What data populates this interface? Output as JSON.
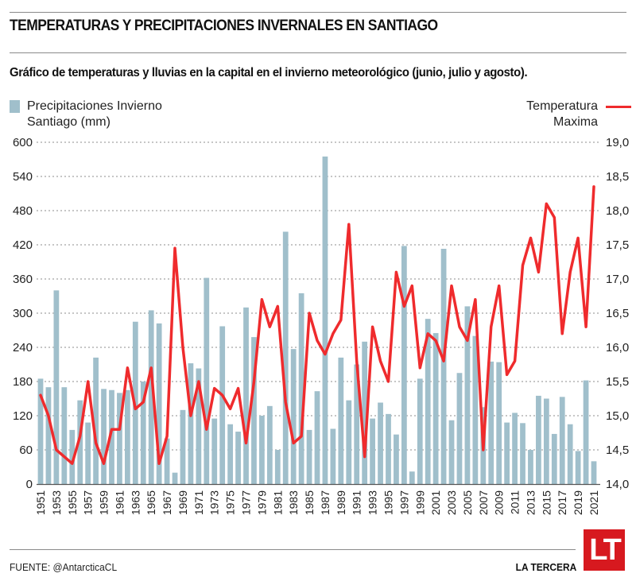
{
  "header": {
    "title": "TEMPERATURAS Y PRECIPITACIONES INVERNALES EN SANTIAGO",
    "subtitle": "Gráfico de temperaturas y lluvias en la capital en el invierno meteorológico (junio, julio y agosto)."
  },
  "legend": {
    "bars_line1": "Precipitaciones Invierno",
    "bars_line2": "Santiago (mm)",
    "line_line1": "Temperatura",
    "line_line2": "Maxima"
  },
  "colors": {
    "bars": "#a0bfcb",
    "line": "#ef2b2d",
    "logo": "#d7191f"
  },
  "footer": {
    "source": "FUENTE: @AntarcticaCL",
    "brand": "LA TERCERA",
    "logo_text": "LT"
  },
  "chart_data": {
    "type": "bar+line",
    "title": "TEMPERATURAS Y PRECIPITACIONES INVERNALES EN SANTIAGO",
    "xlabel": "",
    "ylabel_left": "Precipitaciones Invierno Santiago (mm)",
    "ylabel_right": "Temperatura Maxima",
    "ylim_left": [
      0,
      600
    ],
    "yticks_left": [
      "0",
      "60",
      "120",
      "180",
      "240",
      "300",
      "360",
      "420",
      "480",
      "540",
      "600"
    ],
    "ylim_right": [
      14.0,
      19.0
    ],
    "yticks_right": [
      "14,0",
      "14,5",
      "15,0",
      "15,5",
      "16,0",
      "16,5",
      "17,0",
      "17,5",
      "18,0",
      "18,5",
      "19,0"
    ],
    "grid": true,
    "legend_position": "top",
    "x": [
      1951,
      1952,
      1953,
      1954,
      1955,
      1956,
      1957,
      1958,
      1959,
      1960,
      1961,
      1962,
      1963,
      1964,
      1965,
      1966,
      1967,
      1968,
      1969,
      1970,
      1971,
      1972,
      1973,
      1974,
      1975,
      1976,
      1977,
      1978,
      1979,
      1980,
      1981,
      1982,
      1983,
      1984,
      1985,
      1986,
      1987,
      1988,
      1989,
      1990,
      1991,
      1992,
      1993,
      1994,
      1995,
      1996,
      1997,
      1998,
      1999,
      2000,
      2001,
      2002,
      2003,
      2004,
      2005,
      2006,
      2007,
      2008,
      2009,
      2010,
      2011,
      2012,
      2013,
      2014,
      2015,
      2016,
      2017,
      2018,
      2019,
      2020,
      2021
    ],
    "xtick_labels": [
      "1951",
      "1953",
      "1955",
      "1957",
      "1959",
      "1961",
      "1963",
      "1965",
      "1967",
      "1969",
      "1971",
      "1973",
      "1975",
      "1977",
      "1979",
      "1981",
      "1983",
      "1985",
      "1987",
      "1989",
      "1991",
      "1993",
      "1995",
      "1997",
      "1999",
      "2001",
      "2003",
      "2005",
      "2007",
      "2009",
      "2011",
      "2013",
      "2015",
      "2017",
      "2019",
      "2021"
    ],
    "series": [
      {
        "name": "Precipitaciones Invierno Santiago (mm)",
        "type": "bar",
        "axis": "left",
        "values": [
          185,
          170,
          340,
          170,
          95,
          147,
          108,
          222,
          167,
          165,
          160,
          165,
          285,
          180,
          305,
          282,
          80,
          20,
          130,
          212,
          203,
          362,
          115,
          277,
          105,
          92,
          310,
          258,
          120,
          137,
          60,
          443,
          237,
          335,
          95,
          163,
          575,
          97,
          222,
          147,
          210,
          250,
          115,
          143,
          123,
          87,
          418,
          22,
          185,
          290,
          265,
          413,
          112,
          195,
          312,
          260,
          135,
          215,
          214,
          108,
          125,
          107,
          60,
          155,
          150,
          88,
          153,
          105,
          58,
          182,
          40
        ]
      },
      {
        "name": "Temperatura Maxima",
        "type": "line",
        "axis": "right",
        "values": [
          15.3,
          15.0,
          14.5,
          14.4,
          14.3,
          14.7,
          15.5,
          14.6,
          14.3,
          14.8,
          14.8,
          15.7,
          15.1,
          15.2,
          15.7,
          14.3,
          14.7,
          17.45,
          16.0,
          15.0,
          15.5,
          14.8,
          15.4,
          15.3,
          15.1,
          15.4,
          14.6,
          15.5,
          16.7,
          16.3,
          16.6,
          15.2,
          14.6,
          14.7,
          16.5,
          16.1,
          15.9,
          16.2,
          16.4,
          17.8,
          15.8,
          14.4,
          16.3,
          15.8,
          15.5,
          17.1,
          16.6,
          16.9,
          15.7,
          16.2,
          16.1,
          15.8,
          16.9,
          16.3,
          16.1,
          16.7,
          14.5,
          16.3,
          16.9,
          15.6,
          15.8,
          17.2,
          17.6,
          17.1,
          18.1,
          17.9,
          16.2,
          17.1,
          17.6,
          16.3,
          18.35
        ]
      }
    ]
  }
}
